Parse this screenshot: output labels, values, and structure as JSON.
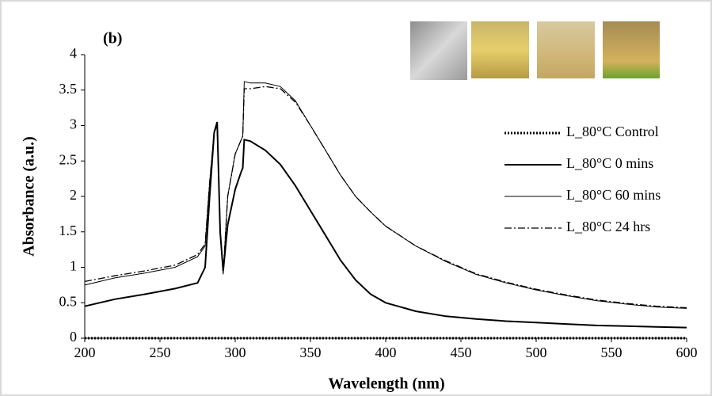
{
  "chart_data": {
    "type": "line",
    "title": "(b)",
    "x_label": "Wavelength (nm)",
    "y_label": "Absorbance (a.u.)",
    "x": [
      200,
      220,
      240,
      260,
      275,
      280,
      283,
      286,
      288,
      290,
      292,
      295,
      300,
      304,
      305,
      306,
      310,
      320,
      330,
      340,
      350,
      360,
      370,
      380,
      390,
      400,
      420,
      440,
      460,
      480,
      500,
      520,
      540,
      560,
      580,
      600
    ],
    "series": [
      {
        "name": "L_80°C Control",
        "color": "#000000",
        "dash": "dotted",
        "width": 3,
        "values": [
          0,
          0,
          0,
          0,
          0,
          0,
          0,
          0,
          0,
          0,
          0,
          0,
          0,
          0,
          0,
          0,
          0,
          0,
          0,
          0,
          0,
          0,
          0,
          0,
          0,
          0,
          0,
          0,
          0,
          0,
          0,
          0,
          0,
          0,
          0,
          0
        ]
      },
      {
        "name": "L_80°C 0 mins",
        "color": "#000000",
        "dash": "solid",
        "width": 2,
        "values": [
          0.45,
          0.55,
          0.62,
          0.7,
          0.78,
          1.0,
          2.0,
          2.9,
          3.05,
          1.5,
          0.95,
          1.6,
          2.1,
          2.35,
          2.4,
          2.8,
          2.78,
          2.65,
          2.45,
          2.15,
          1.8,
          1.45,
          1.1,
          0.82,
          0.62,
          0.5,
          0.38,
          0.31,
          0.27,
          0.24,
          0.22,
          0.2,
          0.18,
          0.17,
          0.16,
          0.15
        ]
      },
      {
        "name": "L_80°C 60 mins",
        "color": "#000000",
        "dash": "solid",
        "width": 1,
        "values": [
          0.75,
          0.85,
          0.92,
          1.0,
          1.15,
          1.3,
          2.2,
          2.9,
          3.05,
          1.5,
          0.9,
          2.0,
          2.6,
          2.8,
          2.85,
          3.62,
          3.6,
          3.6,
          3.55,
          3.35,
          3.0,
          2.65,
          2.3,
          2.0,
          1.78,
          1.58,
          1.3,
          1.08,
          0.9,
          0.78,
          0.68,
          0.6,
          0.53,
          0.48,
          0.44,
          0.42
        ]
      },
      {
        "name": "L_80°C 24 hrs",
        "color": "#000000",
        "dash": "dashdot",
        "width": 1.3,
        "values": [
          0.8,
          0.88,
          0.95,
          1.03,
          1.18,
          1.33,
          2.2,
          2.9,
          3.0,
          1.5,
          0.92,
          2.0,
          2.6,
          2.8,
          2.85,
          3.52,
          3.52,
          3.55,
          3.52,
          3.33,
          3.0,
          2.65,
          2.3,
          2.0,
          1.78,
          1.58,
          1.3,
          1.09,
          0.91,
          0.79,
          0.69,
          0.61,
          0.54,
          0.49,
          0.45,
          0.43
        ]
      }
    ],
    "xlim": [
      200,
      600
    ],
    "xticks": [
      200,
      250,
      300,
      350,
      400,
      450,
      500,
      550,
      600
    ],
    "ylim": [
      0,
      4
    ],
    "yticks": [
      0,
      0.5,
      1,
      1.5,
      2,
      2.5,
      3,
      3.5,
      4
    ],
    "grid": false,
    "legend": "right"
  }
}
